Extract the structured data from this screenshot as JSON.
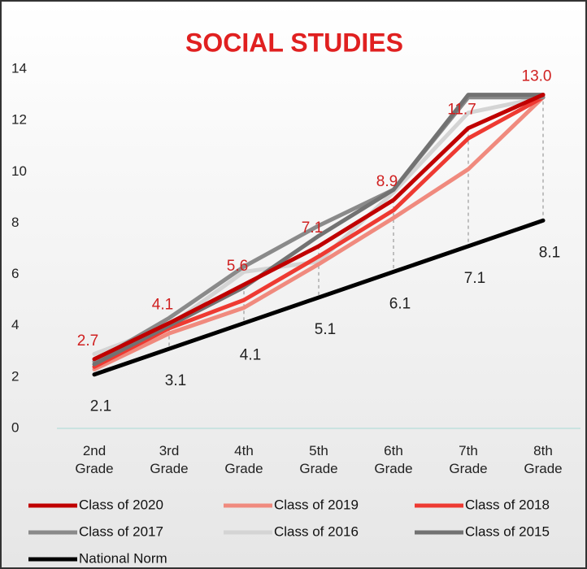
{
  "chart_data": {
    "type": "line",
    "title": "SOCIAL STUDIES",
    "categories": [
      "2nd Grade",
      "3rd Grade",
      "4th Grade",
      "5th Grade",
      "6th Grade",
      "7th Grade",
      "8th Grade"
    ],
    "series": [
      {
        "name": "Class of  2020",
        "color": "#c00000",
        "values": [
          2.7,
          4.1,
          5.6,
          7.1,
          8.9,
          11.7,
          13.0
        ],
        "value_labels": [
          "2.7",
          "4.1",
          "5.6",
          "7.1",
          "8.9",
          "11.7",
          "13.0"
        ]
      },
      {
        "name": "Class of 2019",
        "color": "#f08a7e",
        "values": [
          2.3,
          3.7,
          4.7,
          6.4,
          8.2,
          10.1,
          12.9
        ]
      },
      {
        "name": "Class of 2018",
        "color": "#ee3a32",
        "values": [
          2.4,
          3.9,
          5.0,
          6.7,
          8.5,
          11.3,
          12.9
        ]
      },
      {
        "name": "Class of 2017",
        "color": "#8a8a8a",
        "values": [
          2.6,
          4.3,
          6.3,
          7.9,
          9.3,
          12.9,
          12.9
        ]
      },
      {
        "name": "Class of 2016",
        "color": "#d4d4d4",
        "values": [
          2.9,
          4.0,
          6.1,
          6.5,
          9.2,
          12.3,
          12.9
        ]
      },
      {
        "name": "Class of 2015",
        "color": "#727272",
        "values": [
          2.5,
          4.0,
          5.5,
          7.5,
          9.3,
          13.0,
          13.0
        ]
      },
      {
        "name": "National Norm",
        "color": "#000000",
        "values": [
          2.1,
          3.1,
          4.1,
          5.1,
          6.1,
          7.1,
          8.1
        ]
      }
    ],
    "ylim": [
      0,
      14
    ],
    "yticks": [
      0,
      2,
      4,
      6,
      8,
      10,
      12,
      14
    ],
    "grid": false
  }
}
